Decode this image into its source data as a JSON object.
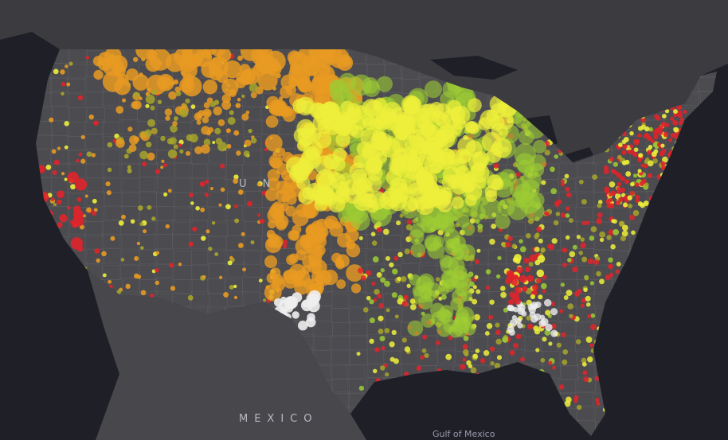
{
  "labels": {
    "country": "U N",
    "mexico": "MEXICO",
    "gulf": "Gulf of Mexico"
  },
  "colors": {
    "ocean": "#1f1f27",
    "canada": "#3b3b40",
    "us_land": "#4b4b50",
    "mexico_land": "#48484c",
    "county_lines": "#6a6a70",
    "red": "#e0242a",
    "orange": "#e89a22",
    "yellow": "#eef03a",
    "green": "#9ccc34",
    "olive": "#a7a52a",
    "white": "#eeeeee"
  }
}
